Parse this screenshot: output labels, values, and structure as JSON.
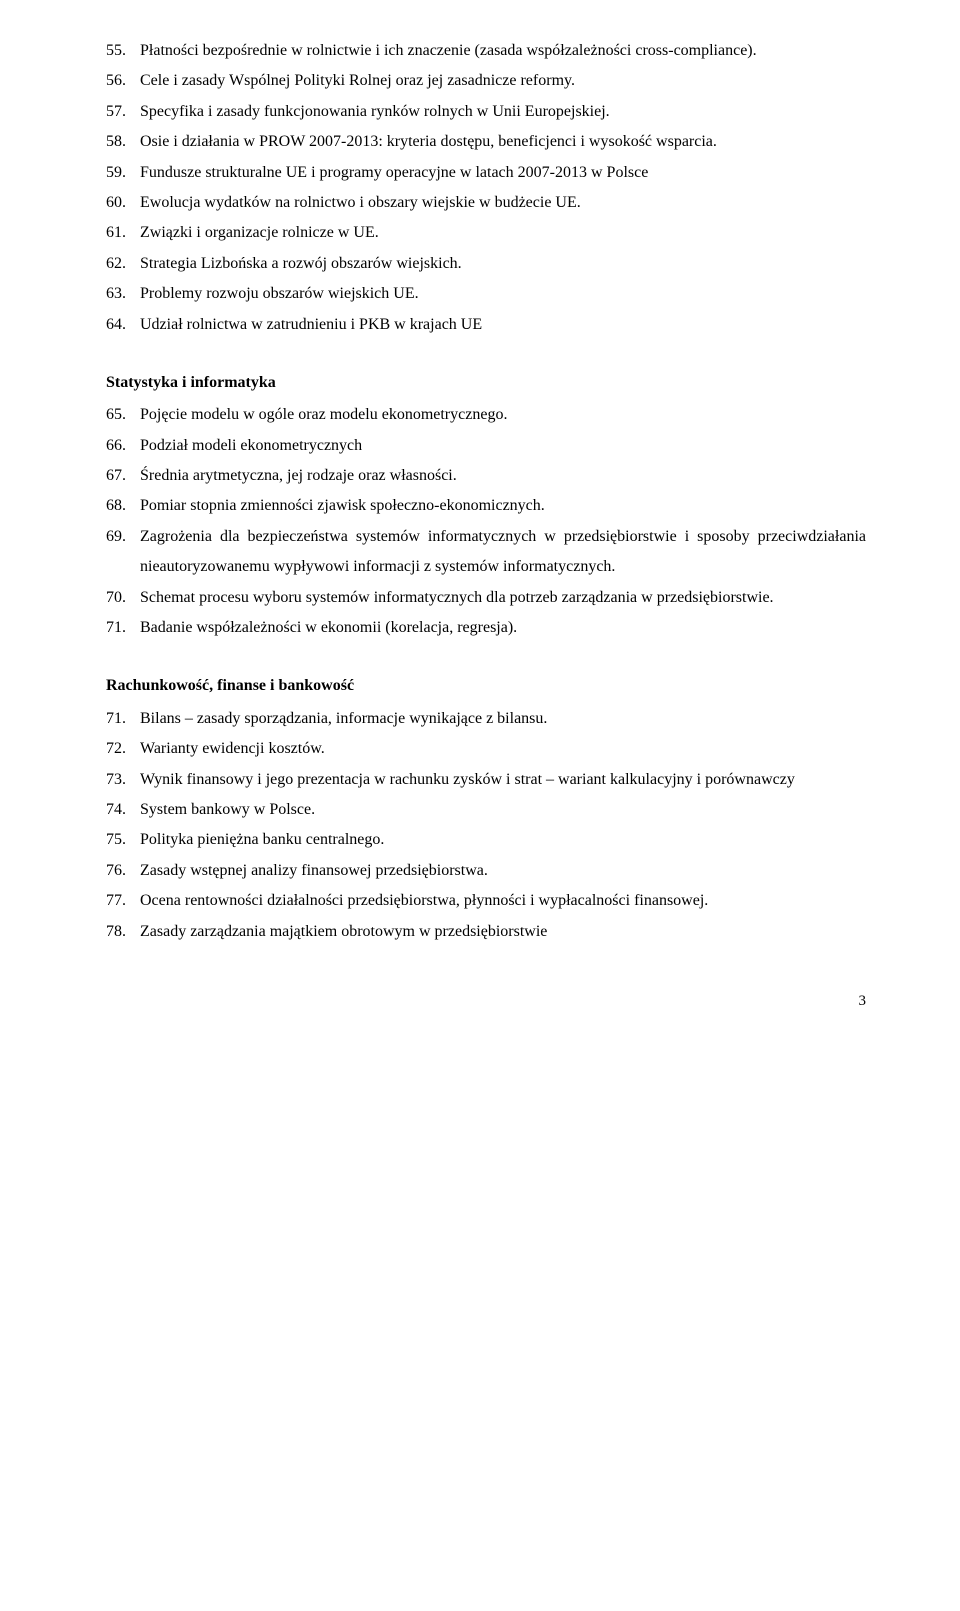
{
  "lists": {
    "top": [
      {
        "n": "55.",
        "t": "Płatności bezpośrednie w rolnictwie i ich znaczenie (zasada współzależności cross-compliance)."
      },
      {
        "n": "56.",
        "t": "Cele i zasady Wspólnej Polityki Rolnej oraz jej zasadnicze reformy."
      },
      {
        "n": "57.",
        "t": "Specyfika i zasady funkcjonowania rynków rolnych w Unii Europejskiej."
      },
      {
        "n": "58.",
        "t": "Osie i działania w PROW 2007-2013: kryteria dostępu, beneficjenci i wysokość wsparcia."
      },
      {
        "n": "59.",
        "t": "Fundusze strukturalne UE i programy operacyjne w latach 2007-2013 w Polsce"
      },
      {
        "n": "60.",
        "t": "Ewolucja wydatków na rolnictwo i obszary wiejskie w budżecie UE."
      },
      {
        "n": "61.",
        "t": "Związki i organizacje rolnicze w UE."
      },
      {
        "n": "62.",
        "t": "Strategia Lizbońska a rozwój obszarów wiejskich."
      },
      {
        "n": "63.",
        "t": "Problemy rozwoju obszarów wiejskich UE."
      },
      {
        "n": "64.",
        "t": "Udział rolnictwa w zatrudnieniu i PKB w krajach UE"
      }
    ],
    "stats": [
      {
        "n": "65.",
        "t": "Pojęcie modelu w ogóle oraz modelu ekonometrycznego."
      },
      {
        "n": "66.",
        "t": "Podział modeli ekonometrycznych"
      },
      {
        "n": "67.",
        "t": "Średnia arytmetyczna, jej rodzaje oraz własności."
      },
      {
        "n": "68.",
        "t": "Pomiar stopnia zmienności zjawisk społeczno-ekonomicznych."
      },
      {
        "n": "69.",
        "t": "Zagrożenia dla bezpieczeństwa systemów informatycznych w przedsiębiorstwie i sposoby przeciwdziałania nieautoryzowanemu wypływowi informacji z systemów informatycznych."
      },
      {
        "n": "70.",
        "t": "Schemat procesu wyboru systemów informatycznych dla potrzeb zarządzania w przedsiębiorstwie."
      },
      {
        "n": "71.",
        "t": "Badanie współzależności w ekonomii (korelacja, regresja)."
      }
    ],
    "fin": [
      {
        "n": "71.",
        "t": "Bilans – zasady sporządzania, informacje wynikające z bilansu."
      },
      {
        "n": "72.",
        "t": "Warianty ewidencji kosztów."
      },
      {
        "n": "73.",
        "t": "Wynik finansowy i jego prezentacja w rachunku zysków i strat – wariant kalkulacyjny i porównawczy"
      },
      {
        "n": "74.",
        "t": "System bankowy w Polsce."
      },
      {
        "n": "75.",
        "t": "Polityka pieniężna banku centralnego."
      },
      {
        "n": "76.",
        "t": "Zasady wstępnej analizy finansowej przedsiębiorstwa."
      },
      {
        "n": "77.",
        "t": "Ocena rentowności działalności przedsiębiorstwa, płynności i wypłacalności finansowej."
      },
      {
        "n": "78.",
        "t": "Zasady zarządzania majątkiem obrotowym w przedsiębiorstwie"
      }
    ]
  },
  "headings": {
    "stats": "Statystyka i informatyka",
    "fin": "Rachunkowość, finanse i bankowość"
  },
  "pageNumber": "3"
}
